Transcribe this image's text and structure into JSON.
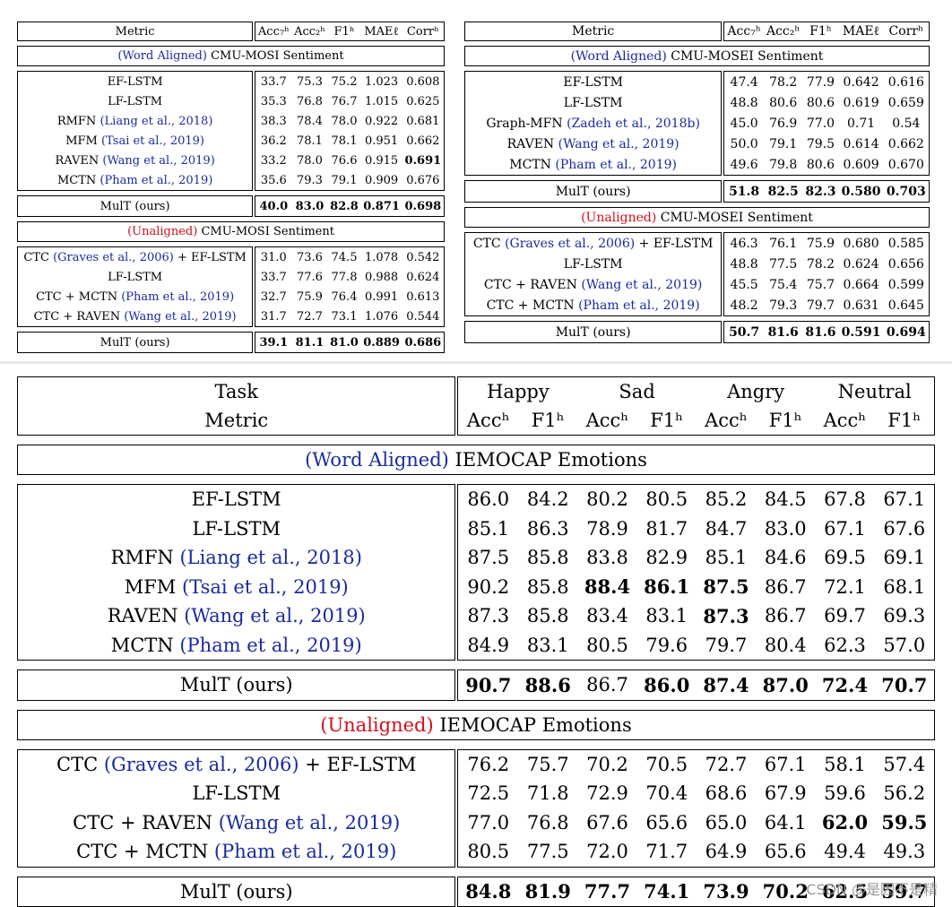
{
  "mosi": {
    "header": [
      "Metric",
      "Acc₇ʰ",
      "Acc₂ʰ",
      "F1ʰ",
      "MAEℓ",
      "Corrʰ"
    ],
    "aligned_label": "(Word Aligned)",
    "aligned_title": " CMU-MOSI Sentiment",
    "aligned_rows": [
      {
        "name": "EF-LSTM",
        "cite": "",
        "v": [
          "33.7",
          "75.3",
          "75.2",
          "1.023",
          "0.608"
        ]
      },
      {
        "name": "LF-LSTM",
        "cite": "",
        "v": [
          "35.3",
          "76.8",
          "76.7",
          "1.015",
          "0.625"
        ]
      },
      {
        "name": "RMFN ",
        "cite": "(Liang et al., 2018)",
        "v": [
          "38.3",
          "78.4",
          "78.0",
          "0.922",
          "0.681"
        ]
      },
      {
        "name": "MFM ",
        "cite": "(Tsai et al., 2019)",
        "v": [
          "36.2",
          "78.1",
          "78.1",
          "0.951",
          "0.662"
        ]
      },
      {
        "name": "RAVEN ",
        "cite": "(Wang et al., 2019)",
        "v": [
          "33.2",
          "78.0",
          "76.6",
          "0.915",
          "0.691"
        ]
      },
      {
        "name": "MCTN ",
        "cite": "(Pham et al., 2019)",
        "v": [
          "35.6",
          "79.3",
          "79.1",
          "0.909",
          "0.676"
        ]
      }
    ],
    "aligned_mult": {
      "name": "MulT (ours)",
      "v": [
        "40.0",
        "83.0",
        "82.8",
        "0.871",
        "0.698"
      ]
    },
    "unaligned_label": "(Unaligned)",
    "unaligned_title": " CMU-MOSI Sentiment",
    "unaligned_rows": [
      {
        "name": "CTC ",
        "cite": "(Graves et al., 2006)",
        "suffix": " + EF-LSTM",
        "v": [
          "31.0",
          "73.6",
          "74.5",
          "1.078",
          "0.542"
        ]
      },
      {
        "name": "LF-LSTM",
        "cite": "",
        "suffix": "",
        "v": [
          "33.7",
          "77.6",
          "77.8",
          "0.988",
          "0.624"
        ]
      },
      {
        "name": "CTC + MCTN ",
        "cite": "(Pham et al., 2019)",
        "suffix": "",
        "v": [
          "32.7",
          "75.9",
          "76.4",
          "0.991",
          "0.613"
        ]
      },
      {
        "name": "CTC + RAVEN ",
        "cite": "(Wang et al., 2019)",
        "suffix": "",
        "v": [
          "31.7",
          "72.7",
          "73.1",
          "1.076",
          "0.544"
        ]
      }
    ],
    "unaligned_mult": {
      "name": "MulT (ours)",
      "v": [
        "39.1",
        "81.1",
        "81.0",
        "0.889",
        "0.686"
      ]
    }
  },
  "mosei": {
    "header": [
      "Metric",
      "Acc₇ʰ",
      "Acc₂ʰ",
      "F1ʰ",
      "MAEℓ",
      "Corrʰ"
    ],
    "aligned_label": "(Word Aligned)",
    "aligned_title": " CMU-MOSEI Sentiment",
    "aligned_rows": [
      {
        "name": "EF-LSTM",
        "cite": "",
        "v": [
          "47.4",
          "78.2",
          "77.9",
          "0.642",
          "0.616"
        ]
      },
      {
        "name": "LF-LSTM",
        "cite": "",
        "v": [
          "48.8",
          "80.6",
          "80.6",
          "0.619",
          "0.659"
        ]
      },
      {
        "name": "Graph-MFN ",
        "cite": "(Zadeh et al., 2018b)",
        "v": [
          "45.0",
          "76.9",
          "77.0",
          "0.71",
          "0.54"
        ]
      },
      {
        "name": "RAVEN ",
        "cite": "(Wang et al., 2019)",
        "v": [
          "50.0",
          "79.1",
          "79.5",
          "0.614",
          "0.662"
        ]
      },
      {
        "name": "MCTN ",
        "cite": "(Pham et al., 2019)",
        "v": [
          "49.6",
          "79.8",
          "80.6",
          "0.609",
          "0.670"
        ]
      }
    ],
    "aligned_mult": {
      "name": "MulT (ours)",
      "v": [
        "51.8",
        "82.5",
        "82.3",
        "0.580",
        "0.703"
      ]
    },
    "unaligned_label": "(Unaligned)",
    "unaligned_title": " CMU-MOSEI Sentiment",
    "unaligned_rows": [
      {
        "name": "CTC ",
        "cite": "(Graves et al., 2006)",
        "suffix": " + EF-LSTM",
        "v": [
          "46.3",
          "76.1",
          "75.9",
          "0.680",
          "0.585"
        ]
      },
      {
        "name": "LF-LSTM",
        "cite": "",
        "suffix": "",
        "v": [
          "48.8",
          "77.5",
          "78.2",
          "0.624",
          "0.656"
        ]
      },
      {
        "name": "CTC + RAVEN ",
        "cite": "(Wang et al., 2019)",
        "suffix": "",
        "v": [
          "45.5",
          "75.4",
          "75.7",
          "0.664",
          "0.599"
        ]
      },
      {
        "name": "CTC + MCTN ",
        "cite": "(Pham et al., 2019)",
        "suffix": "",
        "v": [
          "48.2",
          "79.3",
          "79.7",
          "0.631",
          "0.645"
        ]
      }
    ],
    "unaligned_mult": {
      "name": "MulT (ours)",
      "v": [
        "50.7",
        "81.6",
        "81.6",
        "0.591",
        "0.694"
      ]
    }
  },
  "iemocap": {
    "task_label": "Task",
    "metric_label": "Metric",
    "tasks": [
      "Happy",
      "Sad",
      "Angry",
      "Neutral"
    ],
    "metrics": [
      "Accʰ",
      "F1ʰ",
      "Accʰ",
      "F1ʰ",
      "Accʰ",
      "F1ʰ",
      "Accʰ",
      "F1ʰ"
    ],
    "aligned_label": "(Word Aligned)",
    "aligned_title": " IEMOCAP Emotions",
    "aligned_rows": [
      {
        "name": "EF-LSTM",
        "cite": "",
        "v": [
          "86.0",
          "84.2",
          "80.2",
          "80.5",
          "85.2",
          "84.5",
          "67.8",
          "67.1"
        ]
      },
      {
        "name": "LF-LSTM",
        "cite": "",
        "v": [
          "85.1",
          "86.3",
          "78.9",
          "81.7",
          "84.7",
          "83.0",
          "67.1",
          "67.6"
        ]
      },
      {
        "name": "RMFN ",
        "cite": "(Liang et al., 2018)",
        "v": [
          "87.5",
          "85.8",
          "83.8",
          "82.9",
          "85.1",
          "84.6",
          "69.5",
          "69.1"
        ]
      },
      {
        "name": "MFM ",
        "cite": "(Tsai et al., 2019)",
        "v": [
          "90.2",
          "85.8",
          "88.4",
          "86.1",
          "87.5",
          "86.7",
          "72.1",
          "68.1"
        ]
      },
      {
        "name": "RAVEN ",
        "cite": "(Wang et al., 2019)",
        "v": [
          "87.3",
          "85.8",
          "83.4",
          "83.1",
          "87.3",
          "86.7",
          "69.7",
          "69.3"
        ]
      },
      {
        "name": "MCTN ",
        "cite": "(Pham et al., 2019)",
        "v": [
          "84.9",
          "83.1",
          "80.5",
          "79.6",
          "79.7",
          "80.4",
          "62.3",
          "57.0"
        ]
      }
    ],
    "aligned_mult": {
      "name": "MulT (ours)",
      "v": [
        "90.7",
        "88.6",
        "86.7",
        "86.0",
        "87.4",
        "87.0",
        "72.4",
        "70.7"
      ]
    },
    "unaligned_label": "(Unaligned)",
    "unaligned_title": " IEMOCAP Emotions",
    "unaligned_rows": [
      {
        "name": "CTC ",
        "cite": "(Graves et al., 2006)",
        "suffix": " + EF-LSTM",
        "v": [
          "76.2",
          "75.7",
          "70.2",
          "70.5",
          "72.7",
          "67.1",
          "58.1",
          "57.4"
        ]
      },
      {
        "name": "LF-LSTM",
        "cite": "",
        "suffix": "",
        "v": [
          "72.5",
          "71.8",
          "72.9",
          "70.4",
          "68.6",
          "67.9",
          "59.6",
          "56.2"
        ]
      },
      {
        "name": "CTC + RAVEN ",
        "cite": "(Wang et al., 2019)",
        "suffix": "",
        "v": [
          "77.0",
          "76.8",
          "67.6",
          "65.6",
          "65.0",
          "64.1",
          "62.0",
          "59.5"
        ]
      },
      {
        "name": "CTC + MCTN ",
        "cite": "(Pham et al., 2019)",
        "suffix": "",
        "v": [
          "80.5",
          "77.5",
          "72.0",
          "71.7",
          "64.9",
          "65.6",
          "49.4",
          "49.3"
        ]
      }
    ],
    "unaligned_mult": {
      "name": "MulT (ours)",
      "v": [
        "84.8",
        "81.9",
        "77.7",
        "74.1",
        "73.9",
        "70.2",
        "62.5",
        "59.7"
      ]
    }
  },
  "watermark": "CSDN @是因不是精"
}
